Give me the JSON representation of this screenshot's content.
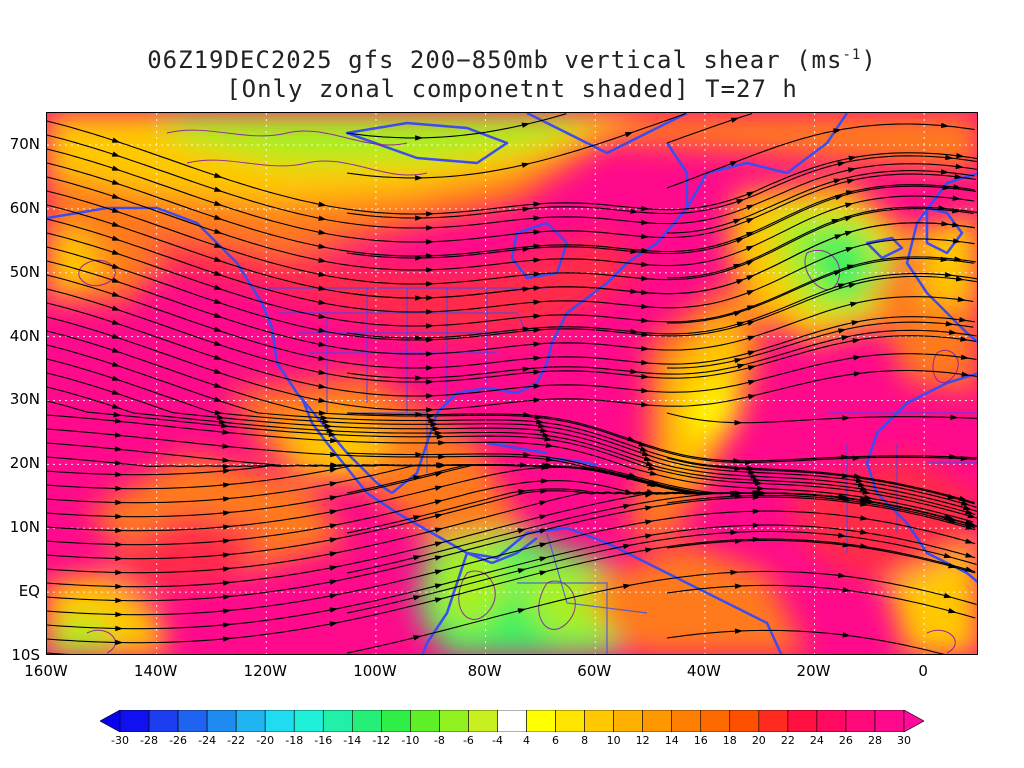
{
  "title": {
    "line1_prefix": "06Z19DEC2025 gfs 200−850mb vertical shear (ms",
    "line1_sup": "-1",
    "line1_suffix": ")",
    "line2": "[Only zonal componetnt shaded] T=27 h"
  },
  "map": {
    "lon_range": [
      -160,
      10
    ],
    "lat_range": [
      -10,
      75
    ],
    "lat_labels": [
      {
        "lat": 70,
        "text": "70N"
      },
      {
        "lat": 60,
        "text": "60N"
      },
      {
        "lat": 50,
        "text": "50N"
      },
      {
        "lat": 40,
        "text": "40N"
      },
      {
        "lat": 30,
        "text": "30N"
      },
      {
        "lat": 20,
        "text": "20N"
      },
      {
        "lat": 10,
        "text": "10N"
      },
      {
        "lat": 0,
        "text": "EQ"
      },
      {
        "lat": -10,
        "text": "10S"
      }
    ],
    "lon_labels": [
      {
        "lon": -160,
        "text": "160W"
      },
      {
        "lon": -140,
        "text": "140W"
      },
      {
        "lon": -120,
        "text": "120W"
      },
      {
        "lon": -100,
        "text": "100W"
      },
      {
        "lon": -80,
        "text": "80W"
      },
      {
        "lon": -60,
        "text": "60W"
      },
      {
        "lon": -40,
        "text": "40W"
      },
      {
        "lon": -20,
        "text": "20W"
      },
      {
        "lon": 0,
        "text": "0"
      }
    ],
    "colors": {
      "strong_shear": "#ff0a8c",
      "high_shear": "#ff2a4a",
      "mid_shear": "#ff7a1a",
      "low_shear": "#ffc800",
      "weak_shear": "#ffff00",
      "negative_weak": "#a8f020",
      "negative_mid": "#3cf060",
      "coastline": "#3b4cf0",
      "streamline": "#000000",
      "contour": "#8b1aa0"
    }
  },
  "colorbar": {
    "labels": [
      "-30",
      "-28",
      "-26",
      "-24",
      "-22",
      "-20",
      "-18",
      "-16",
      "-14",
      "-12",
      "-10",
      "-8",
      "-6",
      "-4",
      "4",
      "6",
      "8",
      "10",
      "12",
      "14",
      "16",
      "18",
      "20",
      "22",
      "24",
      "26",
      "28",
      "30"
    ],
    "colors": [
      "#1010f0",
      "#1c3cf0",
      "#1e64f0",
      "#1e8cf0",
      "#20b4f0",
      "#20dcf0",
      "#20f0d8",
      "#20f0a8",
      "#24f078",
      "#30f048",
      "#60f028",
      "#90f020",
      "#c8f020",
      "#ffffff",
      "#ffff00",
      "#ffe400",
      "#ffc800",
      "#ffb000",
      "#ff9800",
      "#ff8000",
      "#ff6a00",
      "#ff5000",
      "#ff2a20",
      "#ff1040",
      "#ff0a60",
      "#ff0a78",
      "#ff0a8c"
    ],
    "min_arrow_color": "#0a00f0",
    "max_arrow_color": "#ff0a9a"
  }
}
